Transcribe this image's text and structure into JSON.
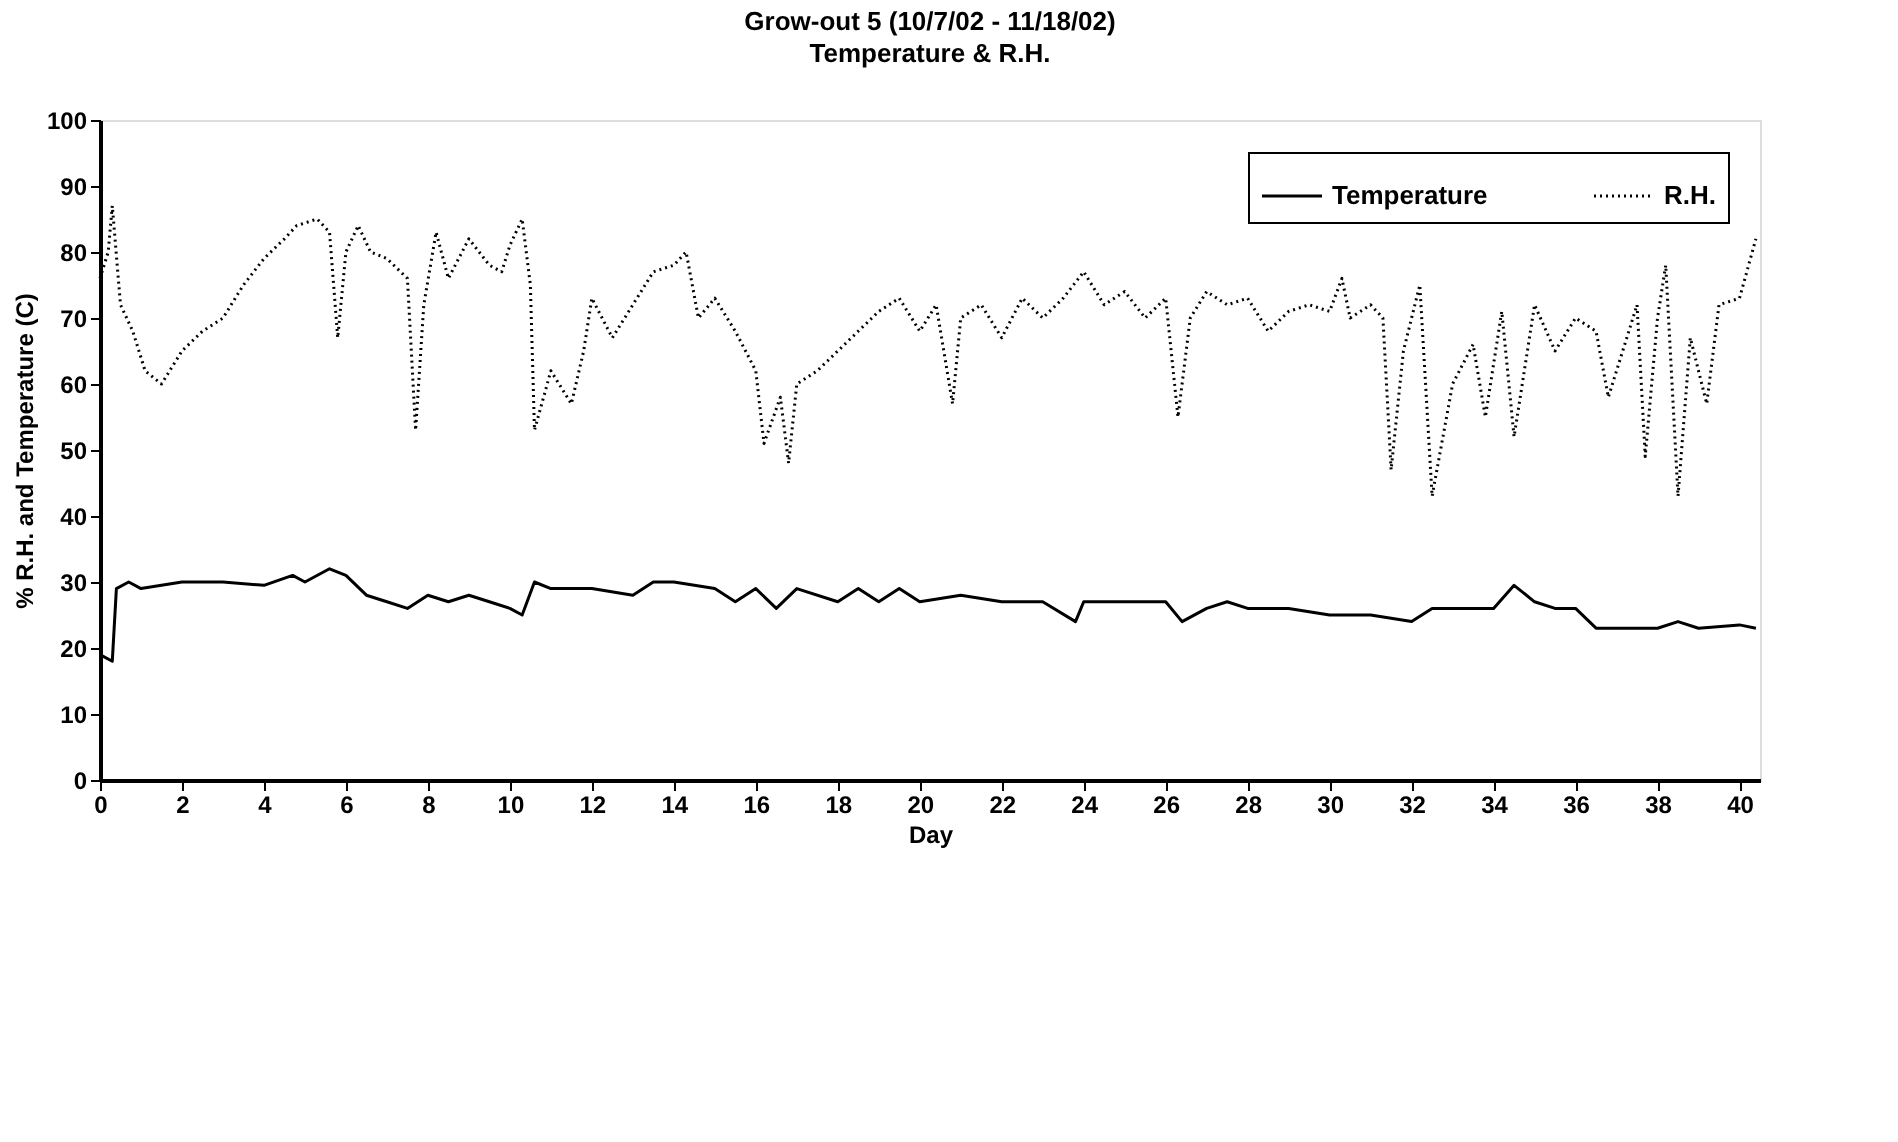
{
  "chart_data": {
    "type": "line",
    "title": "Grow-out 5 (10/7/02 - 11/18/02)",
    "subtitle": "Temperature & R.H.",
    "xlabel": "Day",
    "ylabel": "% R.H. and Temperature (C)",
    "xlim": [
      0,
      40.5
    ],
    "xticks": [
      0,
      2,
      4,
      6,
      8,
      10,
      12,
      14,
      16,
      18,
      20,
      22,
      24,
      26,
      28,
      30,
      32,
      34,
      36,
      38,
      40
    ],
    "ylim": [
      0,
      100
    ],
    "yticks": [
      0,
      10,
      20,
      30,
      40,
      50,
      60,
      70,
      80,
      90,
      100
    ],
    "grid": false,
    "legend": "top right",
    "series": [
      {
        "name": "Temperature",
        "color": "#000000",
        "line_style": "solid",
        "x": [
          0,
          0.3,
          0.4,
          0.7,
          1,
          2,
          3,
          4,
          4.7,
          5,
          5.6,
          6,
          6.5,
          7,
          7.5,
          8,
          8.5,
          9,
          9.5,
          10,
          10.3,
          10.6,
          11,
          12,
          13,
          13.5,
          14,
          15,
          15.5,
          16,
          16.5,
          17,
          18,
          18.5,
          19,
          19.5,
          20,
          21,
          22,
          23,
          23.8,
          24,
          25,
          26,
          26.4,
          27,
          27.5,
          28,
          29,
          30,
          31,
          32,
          32.5,
          33,
          34,
          34.5,
          35,
          35.5,
          36,
          36.5,
          37,
          38,
          38.5,
          39,
          40,
          40.4
        ],
        "values": [
          19,
          18,
          29,
          30,
          29,
          30,
          30,
          29.5,
          31,
          30,
          32,
          31,
          28,
          27,
          26,
          28,
          27,
          28,
          27,
          26,
          25,
          30,
          29,
          29,
          28,
          30,
          30,
          29,
          27,
          29,
          26,
          29,
          27,
          29,
          27,
          29,
          27,
          28,
          27,
          27,
          24,
          27,
          27,
          27,
          24,
          26,
          27,
          26,
          26,
          25,
          25,
          24,
          26,
          26,
          26,
          29.5,
          27,
          26,
          26,
          23,
          23,
          23,
          24,
          23,
          23.5,
          23
        ]
      },
      {
        "name": "R.H.",
        "color": "#000000",
        "line_style": "dotted",
        "x": [
          0,
          0.2,
          0.3,
          0.5,
          0.8,
          1.1,
          1.5,
          2,
          2.5,
          3,
          3.5,
          4,
          4.5,
          4.8,
          5.3,
          5.6,
          5.8,
          6,
          6.3,
          6.6,
          7,
          7.5,
          7.7,
          7.9,
          8.2,
          8.5,
          9,
          9.5,
          9.8,
          10,
          10.3,
          10.5,
          10.6,
          11,
          11.5,
          11.8,
          12,
          12.5,
          13,
          13.5,
          14,
          14.3,
          14.6,
          15,
          15.5,
          16,
          16.2,
          16.6,
          16.8,
          17,
          17.5,
          18,
          18.5,
          19,
          19.5,
          20,
          20.4,
          20.8,
          21,
          21.5,
          22,
          22.5,
          23,
          23.5,
          24,
          24.5,
          25,
          25.5,
          26,
          26.3,
          26.6,
          27,
          27.5,
          28,
          28.5,
          29,
          29.5,
          30,
          30.3,
          30.5,
          31,
          31.3,
          31.5,
          31.8,
          32.2,
          32.5,
          33,
          33.5,
          33.8,
          34.2,
          34.5,
          35,
          35.5,
          36,
          36.5,
          36.8,
          37.5,
          37.7,
          38,
          38.2,
          38.5,
          38.8,
          39.2,
          39.5,
          40,
          40.4
        ],
        "values": [
          76,
          80,
          87,
          72,
          68,
          62,
          60,
          65,
          68,
          70,
          75,
          79,
          82,
          84,
          85,
          83,
          67,
          80,
          84,
          80,
          79,
          76,
          53,
          72,
          83,
          76,
          82,
          78,
          77,
          81,
          85,
          75,
          53,
          62,
          57,
          65,
          73,
          67,
          72,
          77,
          78,
          80,
          70,
          73,
          68,
          62,
          51,
          58,
          48,
          60,
          62,
          65,
          68,
          71,
          73,
          68,
          72,
          57,
          70,
          72,
          67,
          73,
          70,
          73,
          77,
          72,
          74,
          70,
          73,
          55,
          70,
          74,
          72,
          73,
          68,
          71,
          72,
          71,
          76,
          70,
          72,
          70,
          47,
          65,
          75,
          43,
          60,
          66,
          55,
          71,
          52,
          72,
          65,
          70,
          68,
          58,
          72,
          49,
          70,
          78,
          43,
          67,
          57,
          72,
          73,
          82
        ]
      }
    ]
  }
}
